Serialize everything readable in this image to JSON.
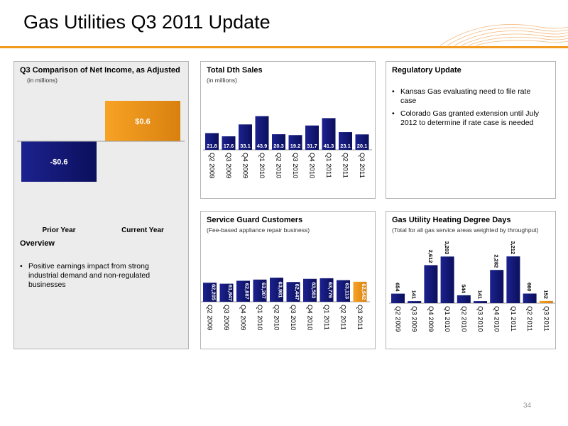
{
  "slide": {
    "title": "Gas Utilities Q3 2011 Update",
    "page_number": "34"
  },
  "colors": {
    "navy": "#141a8c",
    "orange": "#f29a1e"
  },
  "net_income": {
    "title": "Q3 Comparison of Net Income, as Adjusted",
    "subtitle": "(in millions)"
  },
  "overview": {
    "title": "Overview",
    "bullets": [
      "Positive earnings impact from strong industrial demand and non-regulated businesses"
    ]
  },
  "regulatory": {
    "title": "Regulatory Update",
    "bullets": [
      "Kansas Gas evaluating need to file rate case",
      "Colorado Gas granted extension until July 2012 to determine if rate case is needed"
    ]
  },
  "chart_data": [
    {
      "id": "net_income",
      "type": "bar",
      "title": "Q3 Comparison of Net Income, as Adjusted",
      "subtitle": "(in millions)",
      "categories": [
        "Prior Year",
        "Current Year"
      ],
      "values": [
        -0.6,
        0.6
      ],
      "value_labels": [
        "-$0.6",
        "$0.6"
      ],
      "colors": [
        "#141a8c",
        "#f29a1e"
      ]
    },
    {
      "id": "dth_sales",
      "type": "bar",
      "title": "Total Dth Sales",
      "subtitle": "(in millions)",
      "categories": [
        "Q2 2009",
        "Q3 2009",
        "Q4 2009",
        "Q1 2010",
        "Q2 2010",
        "Q3 2010",
        "Q4 2010",
        "Q1 2011",
        "Q2 2011",
        "Q3 2011"
      ],
      "values": [
        21.8,
        17.6,
        33.1,
        43.9,
        20.3,
        19.2,
        31.7,
        41.3,
        23.1,
        20.1
      ],
      "value_labels": [
        "21.8",
        "17.6",
        "33.1",
        "43.9",
        "20.3",
        "19.2",
        "31.7",
        "41.3",
        "23.1",
        "20.1"
      ]
    },
    {
      "id": "service_guard",
      "type": "bar",
      "title": "Service Guard Customers",
      "subtitle": "(Fee-based appliance repair business)",
      "categories": [
        "Q2 2009",
        "Q3 2009",
        "Q4 2009",
        "Q1 2010",
        "Q2 2010",
        "Q3 2010",
        "Q4 2010",
        "Q1 2011",
        "Q2 2011",
        "Q3 2011"
      ],
      "values": [
        62205,
        61847,
        62887,
        63307,
        63981,
        62447,
        63563,
        63776,
        63113,
        62542
      ],
      "value_labels": [
        "62,205",
        "61,847",
        "62,887",
        "63,307",
        "63,981",
        "62,447",
        "63,563",
        "63,776",
        "63,113",
        "62,542"
      ],
      "highlight_last": true
    },
    {
      "id": "heating_degree_days",
      "type": "bar",
      "title": "Gas Utility Heating Degree Days",
      "subtitle": "(Total for all gas service areas weighted by throughput)",
      "categories": [
        "Q2 2009",
        "Q3 2009",
        "Q4 2009",
        "Q1 2010",
        "Q2 2010",
        "Q3 2010",
        "Q4 2010",
        "Q1 2011",
        "Q2 2011",
        "Q3 2011"
      ],
      "values": [
        654,
        141,
        2612,
        3203,
        544,
        141,
        2282,
        3212,
        660,
        152
      ],
      "value_labels": [
        "654",
        "141",
        "2,612",
        "3,203",
        "544",
        "141",
        "2,282",
        "3,212",
        "660",
        "152"
      ],
      "highlight_last": true
    }
  ]
}
